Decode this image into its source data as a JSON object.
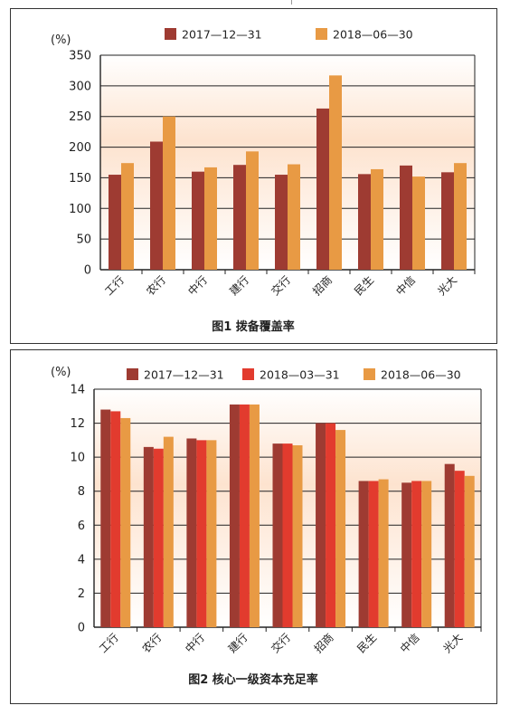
{
  "colors": {
    "series_2017_12_31": "#9e3b32",
    "series_2018_03_31": "#e23b2e",
    "series_2018_06_30": "#e89a44",
    "gradient_top": "#fde3cf",
    "gradient_bottom": "#ffffff"
  },
  "chart_data": [
    {
      "type": "bar",
      "title": "图1  拨备覆盖率",
      "unit": "(%)",
      "categories": [
        "工行",
        "农行",
        "中行",
        "建行",
        "交行",
        "招商",
        "民生",
        "中信",
        "光大"
      ],
      "series": [
        {
          "name": "2017—12—31",
          "values": [
            155,
            209,
            160,
            171,
            155,
            263,
            156,
            170,
            159
          ]
        },
        {
          "name": "2018—06—30",
          "values": [
            174,
            250,
            167,
            193,
            172,
            317,
            164,
            152,
            174
          ]
        }
      ],
      "ylim": [
        0,
        350
      ],
      "yticks": [
        0,
        50,
        100,
        150,
        200,
        250,
        300,
        350
      ],
      "grid": "horizontal",
      "legend": "top"
    },
    {
      "type": "bar",
      "title": "图2  核心一级资本充足率",
      "unit": "(%)",
      "categories": [
        "工行",
        "农行",
        "中行",
        "建行",
        "交行",
        "招商",
        "民生",
        "中信",
        "光大"
      ],
      "series": [
        {
          "name": "2017—12—31",
          "values": [
            12.8,
            10.6,
            11.1,
            13.1,
            10.8,
            12.0,
            8.6,
            8.5,
            9.6
          ]
        },
        {
          "name": "2018—03—31",
          "values": [
            12.7,
            10.5,
            11.0,
            13.1,
            10.8,
            12.0,
            8.6,
            8.6,
            9.2
          ]
        },
        {
          "name": "2018—06—30",
          "values": [
            12.3,
            11.2,
            11.0,
            13.1,
            10.7,
            11.6,
            8.7,
            8.6,
            8.9
          ]
        }
      ],
      "ylim": [
        0,
        14
      ],
      "yticks": [
        0,
        2,
        4,
        6,
        8,
        10,
        12,
        14
      ],
      "grid": "horizontal",
      "legend": "top"
    }
  ]
}
